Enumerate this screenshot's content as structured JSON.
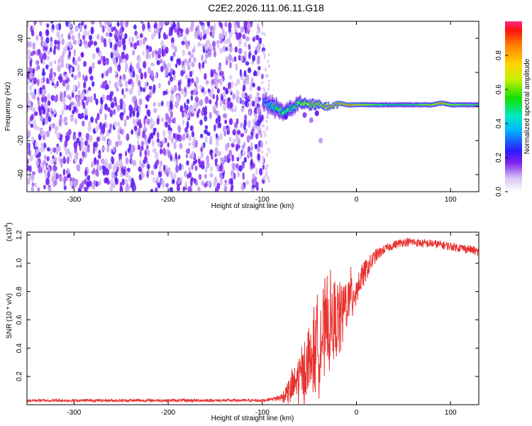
{
  "figure_title": "C2E2.2026.111.06.11.G18",
  "chart_data": [
    {
      "type": "heatmap",
      "title": "C2E2.2026.111.06.11.G18",
      "xlabel": "Height of straight line (km)",
      "ylabel": "Frequency (Hz)",
      "xlim": [
        -350,
        130
      ],
      "ylim": [
        -50,
        50
      ],
      "x_ticks": [
        -300,
        -200,
        -100,
        0,
        100
      ],
      "y_ticks": [
        -40,
        -20,
        0,
        20,
        40
      ],
      "colorbar": {
        "label": "Normalized spectral amplitude",
        "range": [
          0,
          1
        ],
        "ticks": [
          0.0,
          0.2,
          0.4,
          0.6,
          0.8
        ]
      },
      "noise_region": {
        "x_range": [
          -350,
          -100
        ],
        "freq_range": [
          -50,
          50
        ],
        "amplitude": [
          0.1,
          0.3
        ]
      },
      "signal_ridge": {
        "x": [
          -100,
          -90,
          -80,
          -70,
          -60,
          -50,
          -40,
          -30,
          -20,
          -10,
          0,
          20,
          40,
          60,
          80,
          90,
          100,
          130
        ],
        "center_freq": [
          3,
          0,
          -3,
          -1,
          2,
          1,
          1,
          0,
          2,
          1,
          1,
          1,
          1,
          1,
          1,
          2,
          1,
          1
        ],
        "peak_amplitude": [
          0.35,
          0.5,
          0.6,
          0.55,
          0.65,
          0.7,
          0.8,
          0.9,
          0.95,
          0.95,
          0.9,
          0.6,
          0.55,
          0.6,
          0.8,
          0.95,
          0.7,
          0.6
        ],
        "width_hz": [
          8,
          9,
          8,
          7,
          6,
          5,
          4,
          3,
          3,
          3,
          3,
          3,
          3,
          3,
          3,
          3,
          3,
          3
        ]
      }
    },
    {
      "type": "line",
      "xlabel": "Height of straight line (km)",
      "ylabel": "SNR (10 * v/v)",
      "y_multiplier_label": "(x10",
      "y_multiplier_exp": "4",
      "y_multiplier_close": ")",
      "xlim": [
        -350,
        130
      ],
      "ylim": [
        0,
        1.22
      ],
      "x_ticks": [
        -300,
        -200,
        -100,
        0,
        100
      ],
      "y_ticks": [
        0.2,
        0.4,
        0.6,
        0.8,
        1.0,
        1.2
      ],
      "color": "#e8312f",
      "series": [
        {
          "name": "SNR",
          "x": [
            -350,
            -300,
            -250,
            -200,
            -150,
            -100,
            -90,
            -80,
            -70,
            -60,
            -50,
            -40,
            -30,
            -20,
            -10,
            0,
            10,
            20,
            30,
            40,
            50,
            60,
            70,
            80,
            90,
            100,
            110,
            120,
            130
          ],
          "values": [
            0.03,
            0.03,
            0.03,
            0.03,
            0.03,
            0.03,
            0.04,
            0.05,
            0.1,
            0.2,
            0.3,
            0.45,
            0.55,
            0.6,
            0.72,
            0.82,
            0.95,
            1.05,
            1.1,
            1.13,
            1.15,
            1.15,
            1.14,
            1.14,
            1.13,
            1.12,
            1.11,
            1.1,
            1.08
          ],
          "noise_amplitude": [
            0.01,
            0.01,
            0.01,
            0.01,
            0.01,
            0.01,
            0.01,
            0.03,
            0.1,
            0.18,
            0.25,
            0.3,
            0.3,
            0.25,
            0.2,
            0.12,
            0.08,
            0.05,
            0.03,
            0.03,
            0.03,
            0.03,
            0.03,
            0.03,
            0.03,
            0.03,
            0.03,
            0.03,
            0.03
          ]
        }
      ]
    }
  ]
}
